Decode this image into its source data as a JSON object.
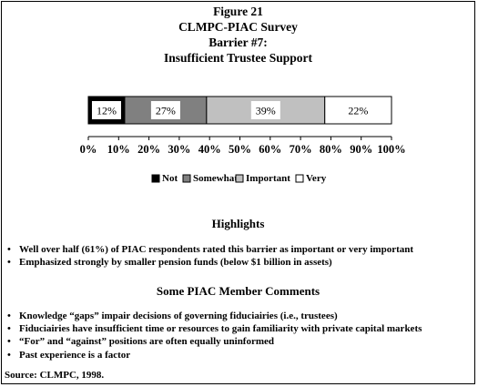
{
  "figure": {
    "title_lines": [
      "Figure 21",
      "CLMPC-PIAC Survey",
      "Barrier #7:",
      "Insufficient Trustee Support"
    ]
  },
  "chart_data": {
    "type": "bar",
    "orientation": "horizontal",
    "stacked": "percent",
    "title": "Figure 21 CLMPC-PIAC Survey Barrier #7: Insufficient Trustee Support",
    "xlim": [
      0,
      100
    ],
    "x_ticks": [
      "0%",
      "10%",
      "20%",
      "30%",
      "40%",
      "50%",
      "60%",
      "70%",
      "80%",
      "90%",
      "100%"
    ],
    "x_tick_values": [
      0,
      10,
      20,
      30,
      40,
      50,
      60,
      70,
      80,
      90,
      100
    ],
    "grid": false,
    "legend_position": "bottom",
    "series": [
      {
        "name": "Not",
        "values": [
          12
        ],
        "label": "12%",
        "color": "#000000"
      },
      {
        "name": "Somewhat",
        "values": [
          27
        ],
        "label": "27%",
        "color": "#808080"
      },
      {
        "name": "Important",
        "values": [
          39
        ],
        "label": "39%",
        "color": "#c0c0c0"
      },
      {
        "name": "Very",
        "values": [
          22
        ],
        "label": "22%",
        "color": "#ffffff"
      }
    ]
  },
  "highlights": {
    "heading": "Highlights",
    "items": [
      "Well over half (61%) of PIAC respondents rated this barrier as important or very important",
      "Emphasized strongly by smaller pension funds (below $1 billion in assets)"
    ]
  },
  "comments": {
    "heading": "Some PIAC Member Comments",
    "items": [
      "Knowledge “gaps” impair decisions of governing fiduciairies (i.e., trustees)",
      "Fiduciairies have insufficient time or resources to gain familiarity with private capital markets",
      "“For” and “against” positions are often equally uninformed",
      "Past experience is a factor"
    ]
  },
  "bullet_glyph": "•",
  "source": "Source: CLMPC, 1998."
}
